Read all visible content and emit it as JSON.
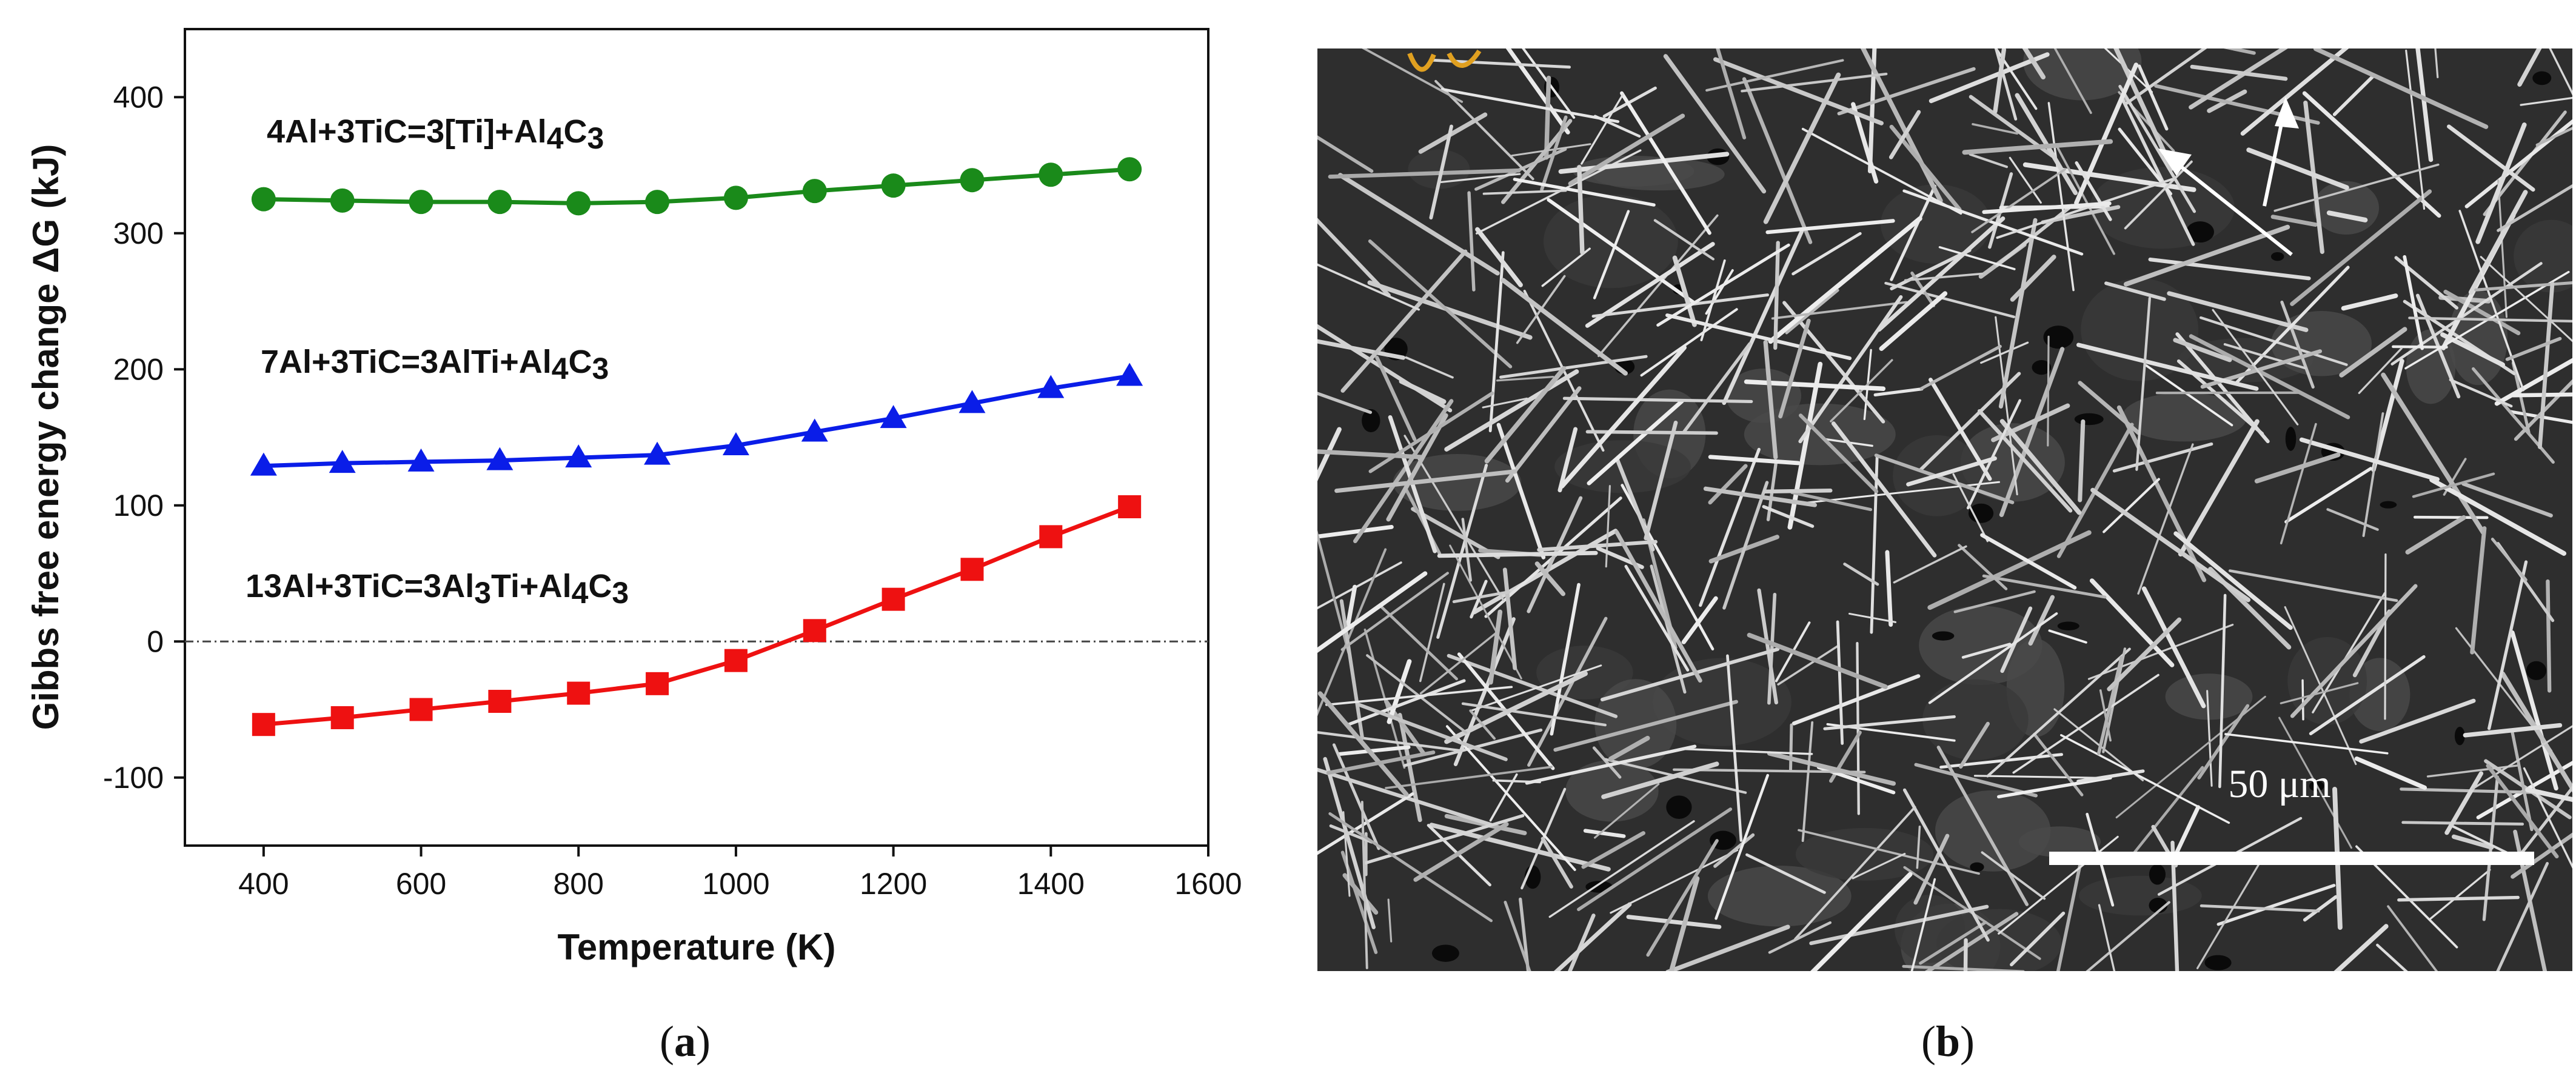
{
  "panels": [
    {
      "label": "(a)",
      "label_bold": "a"
    },
    {
      "label": "(b)",
      "label_bold": "b"
    }
  ],
  "chart_data": {
    "type": "line",
    "title": "",
    "xlabel": "Temperature (K)",
    "ylabel": "Gibbs free energy change ΔG (kJ)",
    "xlim": [
      300,
      1600
    ],
    "ylim": [
      -150,
      450
    ],
    "xticks": [
      400,
      600,
      800,
      1000,
      1200,
      1400,
      1600
    ],
    "yticks": [
      -100,
      0,
      100,
      200,
      300,
      400
    ],
    "zero_reference_line": true,
    "grid": false,
    "x": [
      400,
      500,
      600,
      700,
      800,
      900,
      1000,
      1100,
      1200,
      1300,
      1400,
      1500
    ],
    "series": [
      {
        "label": "4Al+3TiC=3[Ti]+Al4C3",
        "label_parts": [
          [
            "4Al+3TiC=3[Ti]+Al",
            false
          ],
          [
            "4",
            true
          ],
          [
            "C",
            false
          ],
          [
            "3",
            true
          ]
        ],
        "color": "#1a8a1a",
        "marker": "circle",
        "values": [
          325,
          324,
          323,
          323,
          322,
          323,
          326,
          331,
          335,
          339,
          343,
          347
        ]
      },
      {
        "label": "7Al+3TiC=3AlTi+Al4C3",
        "label_parts": [
          [
            "7Al+3TiC=3AlTi+Al",
            false
          ],
          [
            "4",
            true
          ],
          [
            "C",
            false
          ],
          [
            "3",
            true
          ]
        ],
        "color": "#0a1de8",
        "marker": "triangle",
        "values": [
          129,
          131,
          132,
          133,
          135,
          137,
          144,
          154,
          164,
          175,
          186,
          195
        ]
      },
      {
        "label": "13Al+3TiC=3Al3Ti+Al4C3",
        "label_parts": [
          [
            "13Al+3TiC=3Al",
            false
          ],
          [
            "3",
            true
          ],
          [
            "Ti+Al",
            false
          ],
          [
            "4",
            true
          ],
          [
            "C",
            false
          ],
          [
            "3",
            true
          ]
        ],
        "color": "#ee1111",
        "marker": "square",
        "values": [
          -61,
          -56,
          -50,
          -44,
          -38,
          -31,
          -14,
          8,
          31,
          53,
          77,
          99
        ]
      }
    ]
  },
  "micrograph": {
    "scale_bar_text": "50 μm",
    "colors": {
      "background": "#2e2e2e",
      "needle": "#d2d2d2",
      "arrow": "#ffffff",
      "orange_mark": "#e0a020"
    }
  }
}
